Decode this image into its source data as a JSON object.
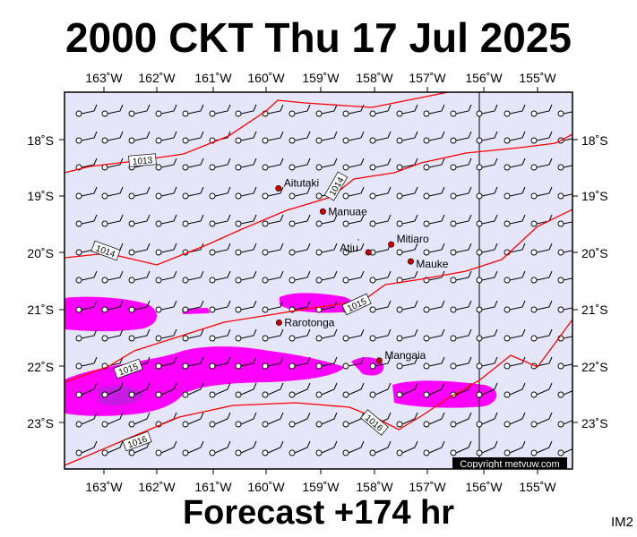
{
  "title": "2000 CKT Thu 17 Jul 2025",
  "forecast": "Forecast +174 hr",
  "product_code": "IM2",
  "copyright": "Copyright metvuw.com",
  "colors": {
    "background": "#ffffff",
    "map_fill": "#e6e6fa",
    "isobar": "#ff0000",
    "rain_light": "#ff00ff",
    "rain_heavy": "#9932cc",
    "station": "#cc0000"
  },
  "axes": {
    "top_lon_labels": [
      "163˚W",
      "162˚W",
      "161˚W",
      "160˚W",
      "159˚W",
      "158˚W",
      "157˚W",
      "156˚W",
      "155˚W"
    ],
    "bottom_lon_labels": [
      "163˚W",
      "162˚W",
      "161˚W",
      "160˚W",
      "159˚W",
      "158˚W",
      "157˚W",
      "156˚W",
      "155˚W"
    ],
    "left_lat_labels": [
      "18˚S",
      "19˚S",
      "20˚S",
      "21˚S",
      "22˚S",
      "23˚S"
    ],
    "right_lat_labels": [
      "18˚S",
      "19˚S",
      "20˚S",
      "21˚S",
      "22˚S",
      "23˚S"
    ],
    "meridian_line": "156˚W"
  },
  "isobars": [
    {
      "label": "1013"
    },
    {
      "label": "1014"
    },
    {
      "label": "1014"
    },
    {
      "label": "1015"
    },
    {
      "label": "1015"
    },
    {
      "label": "1016"
    },
    {
      "label": "1016"
    }
  ],
  "places": [
    {
      "name": "Aitutaki",
      "lon": -159.78,
      "lat": -18.86
    },
    {
      "name": "Manuae",
      "lon": -158.96,
      "lat": -19.27
    },
    {
      "name": "Mitiaro",
      "lon": -157.7,
      "lat": -19.85
    },
    {
      "name": "Atiu",
      "lon": -158.12,
      "lat": -19.99
    },
    {
      "name": "Mauke",
      "lon": -157.34,
      "lat": -20.15
    },
    {
      "name": "Rarotonga",
      "lon": -159.77,
      "lat": -21.23
    },
    {
      "name": "Mangaia",
      "lon": -157.92,
      "lat": -21.9
    }
  ]
}
